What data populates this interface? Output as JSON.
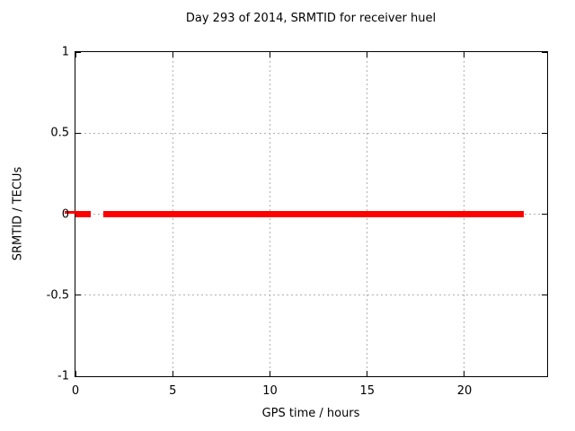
{
  "chart_data": {
    "type": "line",
    "title": "Day 293 of 2014, SRMTID for receiver huel",
    "xlabel": "GPS time / hours",
    "ylabel": "SRMTID / TECUs",
    "xlim": [
      0,
      24.25
    ],
    "ylim": [
      -1,
      1
    ],
    "xticks": [
      0,
      5,
      10,
      15,
      20
    ],
    "yticks": [
      -1,
      -0.5,
      0,
      0.5,
      1
    ],
    "grid": true,
    "grid_style": "dotted",
    "legend": "none",
    "series": [
      {
        "name": "SRMTID",
        "color": "#ff0000",
        "style": "thick horizontal line at y=0 with one gap",
        "y": 0,
        "segments": [
          {
            "x_start": 0.0,
            "x_end": 0.78
          },
          {
            "x_start": 1.43,
            "x_end": 23.05
          }
        ]
      }
    ],
    "colors": {
      "line": "#ff0000",
      "grid": "#b0b0b0",
      "border": "#000000",
      "text": "#000000",
      "background": "#ffffff"
    }
  }
}
